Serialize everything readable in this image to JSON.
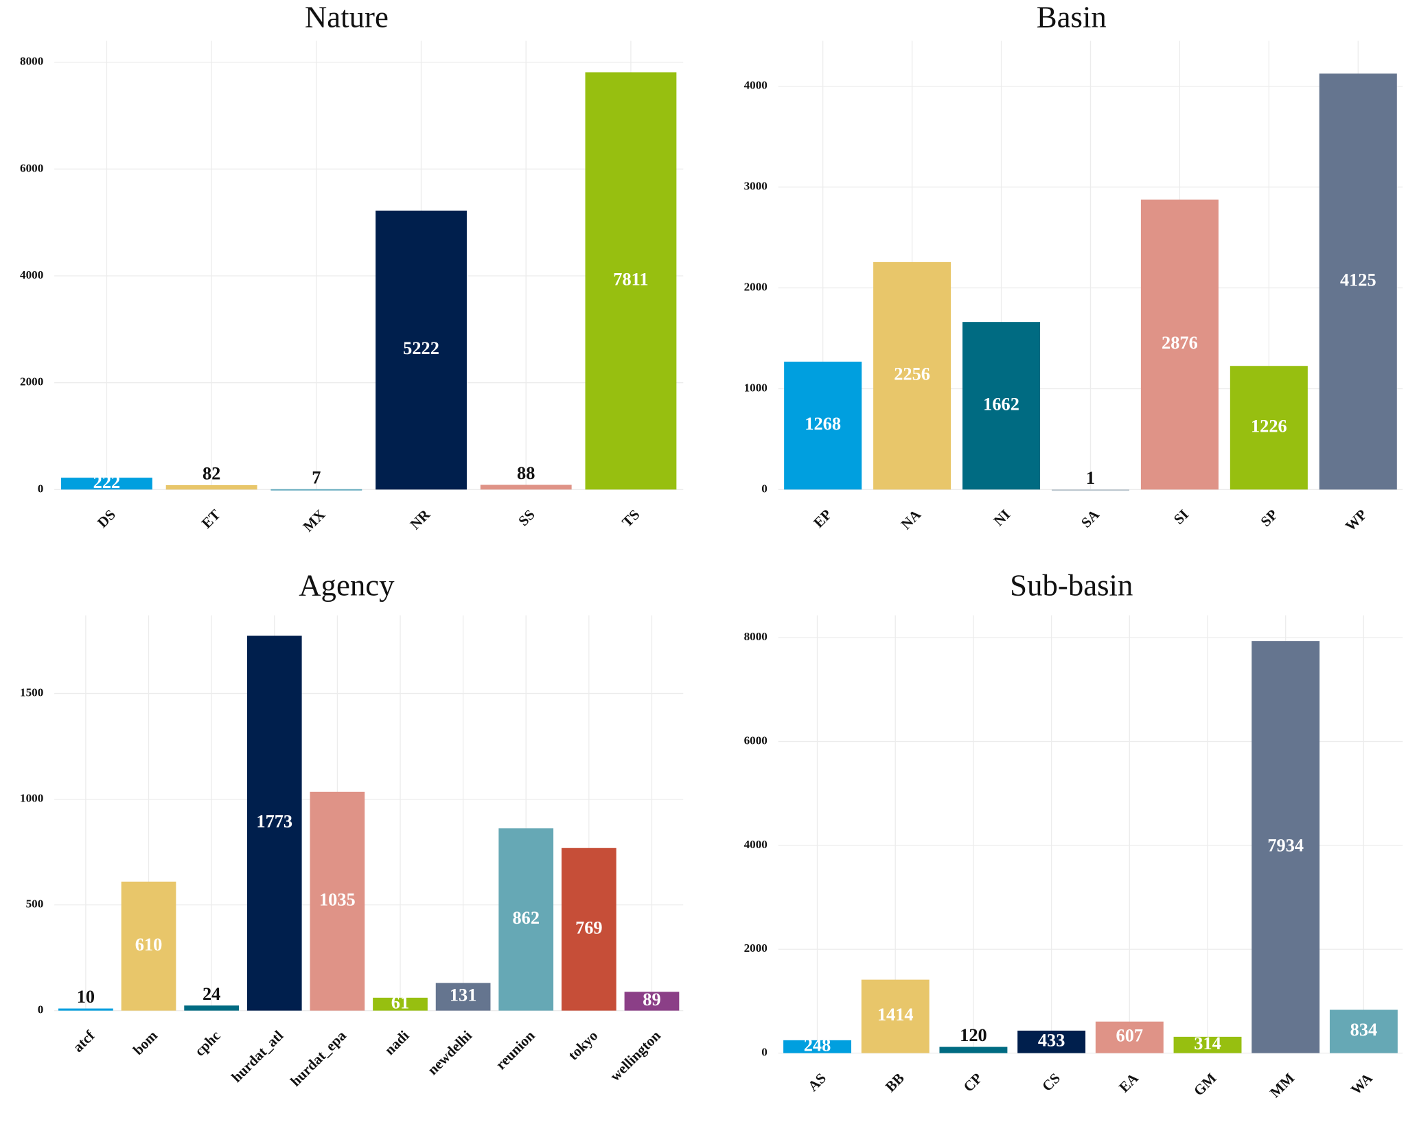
{
  "chart_data": [
    {
      "type": "bar",
      "title": "Nature",
      "categories": [
        "DS",
        "ET",
        "MX",
        "NR",
        "SS",
        "TS"
      ],
      "values": [
        222,
        82,
        7,
        5222,
        88,
        7811
      ],
      "colors": [
        "#009fdf",
        "#e8c66a",
        "#6aaec0",
        "#001f4d",
        "#df9387",
        "#97bf10"
      ],
      "ylim": [
        0,
        8400
      ],
      "yticks": [
        0,
        2000,
        4000,
        6000,
        8000
      ],
      "grid": true
    },
    {
      "type": "bar",
      "title": "Basin",
      "categories": [
        "EP",
        "NA",
        "NI",
        "SA",
        "SI",
        "SP",
        "WP"
      ],
      "values": [
        1268,
        2256,
        1662,
        1,
        2876,
        1226,
        4125
      ],
      "colors": [
        "#009fdf",
        "#e8c66a",
        "#006b82",
        "#b8c4cc",
        "#df9387",
        "#97bf10",
        "#65758f"
      ],
      "ylim": [
        0,
        4450
      ],
      "yticks": [
        0,
        1000,
        2000,
        3000,
        4000
      ],
      "grid": true
    },
    {
      "type": "bar",
      "title": "Agency",
      "categories": [
        "atcf",
        "bom",
        "cphc",
        "hurdat_atl",
        "hurdat_epa",
        "nadi",
        "newdelhi",
        "reunion",
        "tokyo",
        "wellington"
      ],
      "values": [
        10,
        610,
        24,
        1773,
        1035,
        61,
        131,
        862,
        769,
        89
      ],
      "colors": [
        "#009fdf",
        "#e8c66a",
        "#006b82",
        "#001f4d",
        "#df9387",
        "#97bf10",
        "#65758f",
        "#66a8b5",
        "#c64e38",
        "#8b3f87"
      ],
      "ylim": [
        0,
        1870
      ],
      "yticks": [
        0,
        500,
        1000,
        1500
      ],
      "grid": true
    },
    {
      "type": "bar",
      "title": "Sub-basin",
      "categories": [
        "AS",
        "BB",
        "CP",
        "CS",
        "EA",
        "GM",
        "MM",
        "WA"
      ],
      "values": [
        248,
        1414,
        120,
        433,
        607,
        314,
        7934,
        834
      ],
      "colors": [
        "#009fdf",
        "#e8c66a",
        "#006b82",
        "#001f4d",
        "#df9387",
        "#97bf10",
        "#65758f",
        "#66a8b5"
      ],
      "ylim": [
        0,
        8430
      ],
      "yticks": [
        0,
        2000,
        4000,
        6000,
        8000
      ],
      "grid": true
    }
  ]
}
